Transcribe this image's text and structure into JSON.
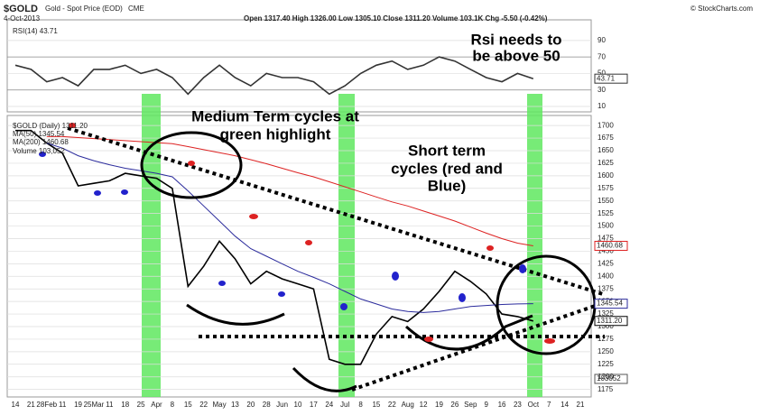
{
  "header": {
    "symbol": "$GOLD",
    "name": "Gold - Spot Price (EOD)",
    "exchange": "CME",
    "date": "4-Oct-2013",
    "stats": "Open 1317.40 High 1326.00 Low 1305.10 Close 1311.20 Volume 103.1K Chg -5.50 (-0.42%)",
    "copyright": "© StockCharts.com",
    "volume_legend": "Volume 103,052",
    "volume_box": "103052"
  },
  "annotations": [
    {
      "lines": [
        "Rsi needs to",
        "be above 50"
      ]
    },
    {
      "lines": [
        "Medium Term cycles at",
        "green highlight"
      ]
    },
    {
      "lines": [
        "Short term",
        "cycles (red and",
        "Blue)"
      ]
    }
  ],
  "chart_data": [
    {
      "type": "line",
      "ylim": [
        3,
        115
      ],
      "yticks": [
        10,
        30,
        50,
        70,
        90
      ],
      "grid": true,
      "series": [
        {
          "name": "RSI(14) 43.71",
          "color": "#333333",
          "last_label": "43.71",
          "values": [
            60,
            55,
            40,
            45,
            35,
            55,
            55,
            60,
            50,
            55,
            45,
            25,
            45,
            60,
            45,
            35,
            50,
            45,
            45,
            40,
            25,
            35,
            50,
            60,
            65,
            55,
            60,
            70,
            65,
            55,
            45,
            40,
            50,
            43.71,
            null,
            null,
            null
          ]
        }
      ]
    },
    {
      "type": "line",
      "ylim": [
        1160,
        1720
      ],
      "yticks": [
        1175,
        1200,
        1225,
        1250,
        1275,
        1300,
        1325,
        1350,
        1375,
        1400,
        1425,
        1450,
        1475,
        1500,
        1525,
        1550,
        1575,
        1600,
        1625,
        1650,
        1675,
        1700
      ],
      "grid": true,
      "categories": [
        "14",
        "21",
        "28Feb",
        "11",
        "19",
        "25Mar",
        "11",
        "18",
        "25",
        "Apr",
        "8",
        "15",
        "22",
        "May",
        "13",
        "20",
        "28",
        "Jun",
        "10",
        "17",
        "24",
        "Jul",
        "8",
        "15",
        "22",
        "Aug",
        "12",
        "19",
        "26",
        "Sep",
        "9",
        "16",
        "23",
        "Oct",
        "7",
        "14",
        "21"
      ],
      "series": [
        {
          "name": "$GOLD (Daily) 1311.20",
          "color": "#000000",
          "last_label": "1311.20",
          "values": [
            1690,
            1690,
            1665,
            1645,
            1580,
            1585,
            1590,
            1605,
            1600,
            1595,
            1575,
            1380,
            1420,
            1470,
            1435,
            1385,
            1410,
            1395,
            1385,
            1375,
            1235,
            1225,
            1225,
            1285,
            1320,
            1310,
            1335,
            1370,
            1410,
            1390,
            1365,
            1325,
            1320,
            1311.2,
            null,
            null,
            null
          ]
        },
        {
          "name": "MA(50) 1345.54",
          "color": "#2b2b9c",
          "last_label": "1345.54",
          "values": [
            null,
            null,
            1665,
            1655,
            1640,
            1630,
            1622,
            1615,
            1610,
            1605,
            1598,
            1570,
            1540,
            1510,
            1480,
            1455,
            1440,
            1425,
            1410,
            1398,
            1385,
            1370,
            1355,
            1345,
            1335,
            1330,
            1328,
            1330,
            1335,
            1340,
            1342,
            1344,
            1345,
            1345.54,
            null,
            null,
            null
          ]
        },
        {
          "name": "MA(200) 1460.68",
          "color": "#dd2222",
          "last_label": "1460.68",
          "values": [
            null,
            null,
            1678,
            1678,
            1676,
            1674,
            1672,
            1670,
            1668,
            1666,
            1664,
            1658,
            1652,
            1646,
            1640,
            1632,
            1624,
            1615,
            1606,
            1598,
            1588,
            1578,
            1568,
            1558,
            1548,
            1540,
            1530,
            1520,
            1510,
            1498,
            1486,
            1475,
            1466,
            1460.68,
            null,
            null,
            null
          ]
        }
      ]
    }
  ]
}
